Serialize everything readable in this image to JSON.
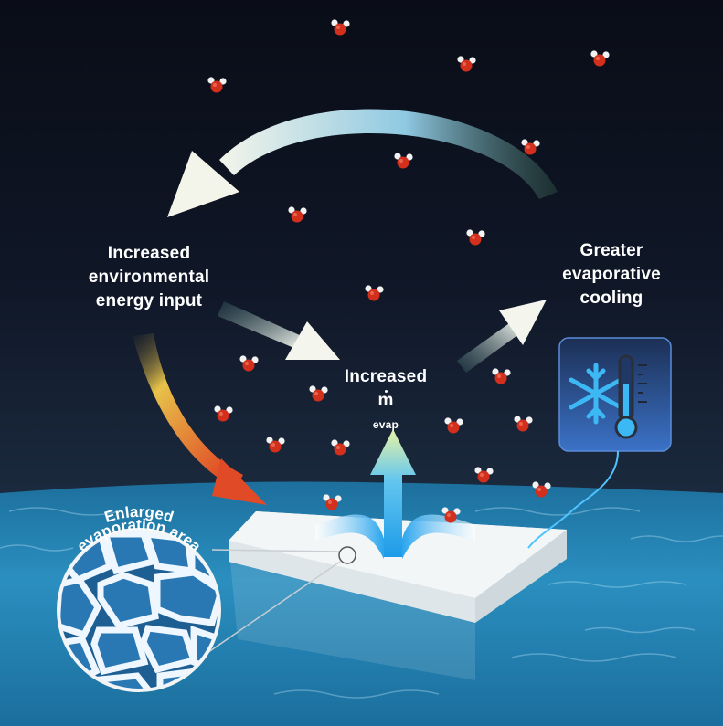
{
  "labels": {
    "env_line1": "Increased",
    "env_line2": "environmental",
    "env_line3": "energy input",
    "cool_line1": "Greater",
    "cool_line2": "evaporative",
    "cool_line3": "cooling",
    "inc_line1": "Increased",
    "mdot_symbol": "m",
    "mdot_subscript": "evap",
    "enlarged_line1": "Enlarged",
    "enlarged_line2": "evaporation area"
  },
  "icons": {
    "moon": "crescent-moon-icon",
    "thermometer": "snowflake-thermometer-icon",
    "molecule": "water-molecule-icon"
  },
  "colors": {
    "sky_top": "#0b0f1c",
    "water": "#2a86b3",
    "oxygen": "#d7321f",
    "hydrogen": "#eeeeee",
    "cooling_badge": "#2f5fae",
    "ice_blue": "#39b6f2",
    "warm_arrow": "#e4502a"
  }
}
